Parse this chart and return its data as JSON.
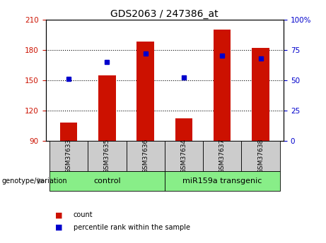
{
  "title": "GDS2063 / 247386_at",
  "samples": [
    "GSM37633",
    "GSM37635",
    "GSM37636",
    "GSM37634",
    "GSM37637",
    "GSM37638"
  ],
  "counts": [
    108,
    155,
    188,
    112,
    200,
    182
  ],
  "percentiles": [
    51,
    65,
    72,
    52,
    70,
    68
  ],
  "ylim_left": [
    90,
    210
  ],
  "ylim_right": [
    0,
    100
  ],
  "yticks_left": [
    90,
    120,
    150,
    180,
    210
  ],
  "yticks_right": [
    0,
    25,
    50,
    75,
    100
  ],
  "ytick_labels_right": [
    "0",
    "25",
    "50",
    "75",
    "100%"
  ],
  "bar_color": "#cc1100",
  "dot_color": "#0000cc",
  "bar_bottom": 90,
  "groups": [
    {
      "label": "control",
      "indices": [
        0,
        1,
        2
      ],
      "color": "#88ee88"
    },
    {
      "label": "miR159a transgenic",
      "indices": [
        3,
        4,
        5
      ],
      "color": "#88ee88"
    }
  ],
  "group_label": "genotype/variation",
  "legend_items": [
    {
      "label": "count",
      "color": "#cc1100"
    },
    {
      "label": "percentile rank within the sample",
      "color": "#0000cc"
    }
  ],
  "title_fontsize": 10,
  "tick_fontsize": 7.5,
  "label_fontsize": 8,
  "sample_box_color": "#cccccc",
  "bar_width": 0.45
}
